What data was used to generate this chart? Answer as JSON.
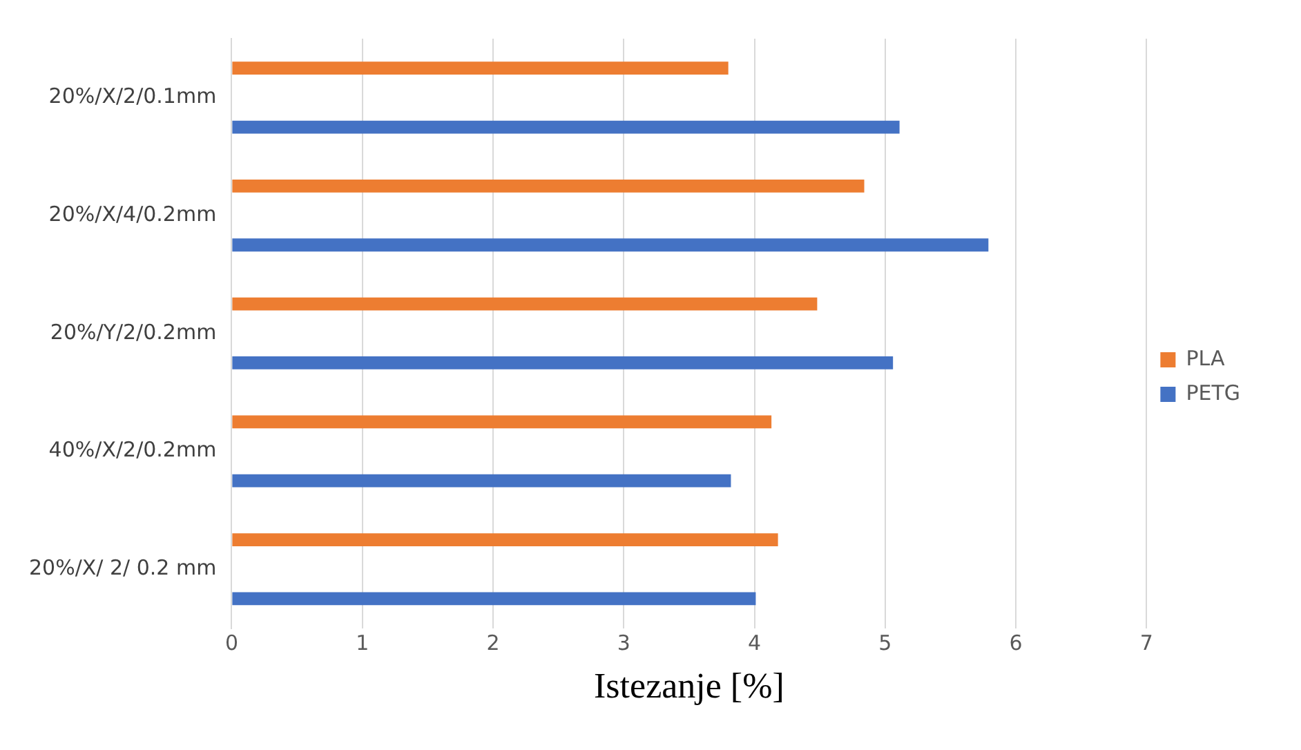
{
  "chart_data": {
    "type": "bar",
    "orientation": "horizontal",
    "xlabel": "Istezanje [%]",
    "categories": [
      "20%/X/2/0.1mm",
      "20%/X/4/0.2mm",
      "20%/Y/2/0.2mm",
      "40%/X/2/0.2mm",
      "20%/X/ 2/ 0.2 mm"
    ],
    "series": [
      {
        "name": "PLA",
        "color": "#ed7d31",
        "values": [
          3.8,
          4.84,
          4.48,
          4.13,
          4.18
        ]
      },
      {
        "name": "PETG",
        "color": "#4472c4",
        "values": [
          5.11,
          5.79,
          5.06,
          3.82,
          4.01
        ]
      }
    ],
    "xlim": [
      0,
      7
    ],
    "xticks": [
      0,
      1,
      2,
      3,
      4,
      5,
      6,
      7
    ],
    "grid": "x",
    "legend": "right"
  }
}
